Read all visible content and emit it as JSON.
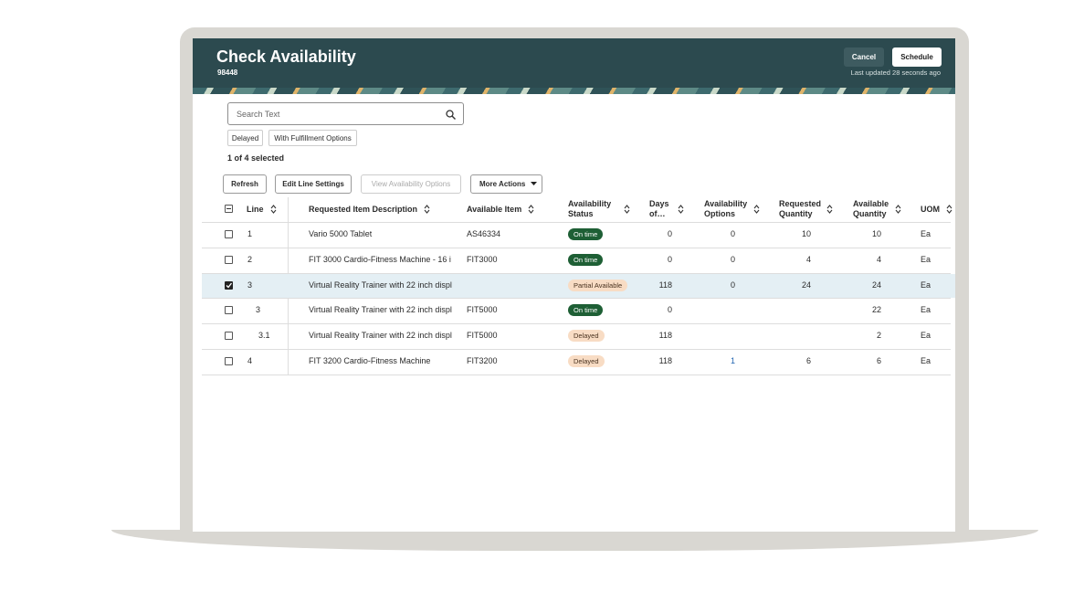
{
  "header": {
    "title": "Check Availability",
    "subtitle": "98448",
    "cancel": "Cancel",
    "schedule": "Schedule",
    "last_updated": "Last updated 28 seconds ago"
  },
  "search": {
    "placeholder": "Search Text"
  },
  "filters": [
    "Delayed",
    "With Fulfillment Options"
  ],
  "selection": "1 of 4 selected",
  "toolbar": [
    "Refresh",
    "Edit Line Settings",
    "View Availability Options",
    "More Actions"
  ],
  "table": {
    "columns": [
      "Line",
      "Requested Item Description",
      "Available Item",
      "Availability Status",
      "Days of…",
      "Availability Options",
      "Requested Quantity",
      "Available Quantity",
      "UOM"
    ],
    "rows": [
      [
        "1",
        "Vario 5000 Tablet",
        "AS46334",
        "On time",
        0,
        0,
        10,
        10,
        "Ea"
      ],
      [
        "2",
        "FIT 3000 Cardio-Fitness Machine - 16 i",
        "FIT3000",
        "On time",
        0,
        0,
        4,
        4,
        "Ea"
      ],
      [
        "3",
        "Virtual Reality Trainer with 22 inch displ",
        null,
        "Partial Available",
        118,
        0,
        24,
        24,
        "Ea"
      ],
      [
        "3",
        "Virtual Reality Trainer with 22 inch displ",
        "FIT5000",
        "On time",
        0,
        null,
        null,
        22,
        "Ea"
      ],
      [
        "3.1",
        "Virtual Reality Trainer with 22 inch displ",
        "FIT5000",
        "Delayed",
        118,
        null,
        null,
        2,
        "Ea"
      ],
      [
        "4",
        "FIT 3200 Cardio-Fitness Machine",
        "FIT3200",
        "Delayed",
        118,
        1,
        6,
        6,
        "Ea"
      ]
    ]
  }
}
